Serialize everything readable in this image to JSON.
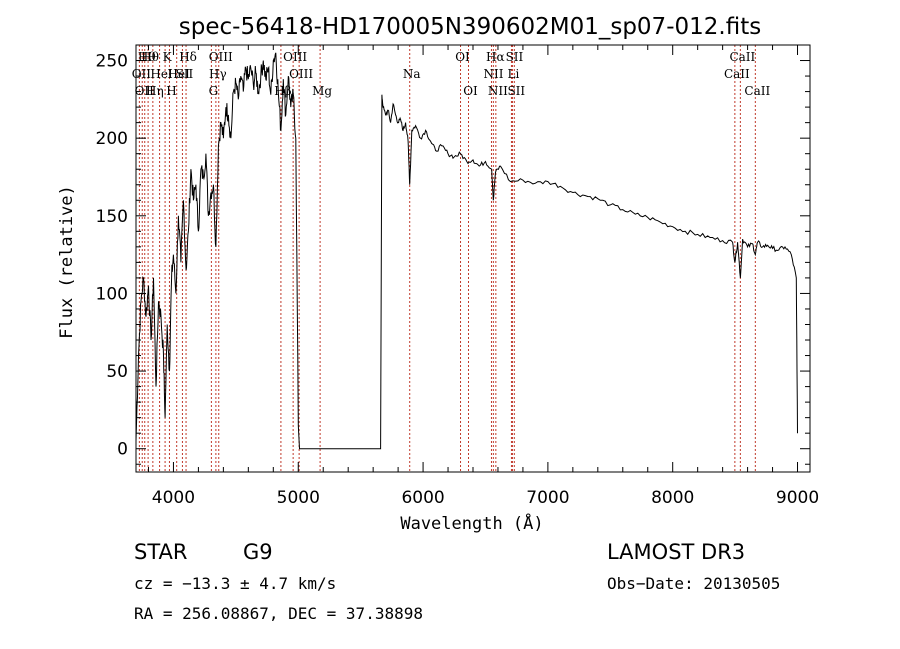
{
  "chart_data": {
    "type": "line",
    "title": "spec-56418-HD170005N390602M01_sp07-012.fits",
    "xlabel": "Wavelength (Å)",
    "ylabel": "Flux (relative)",
    "xlim": [
      3700,
      9100
    ],
    "ylim": [
      -15,
      260
    ],
    "xticks": [
      4000,
      5000,
      6000,
      7000,
      8000,
      9000
    ],
    "yticks": [
      0,
      50,
      100,
      150,
      200,
      250
    ],
    "series": [
      {
        "x": [
          3700,
          3720,
          3740,
          3760,
          3780,
          3800,
          3820,
          3840,
          3860,
          3880,
          3900,
          3920,
          3933,
          3950,
          3968,
          3985,
          4000,
          4020,
          4040,
          4060,
          4080,
          4101,
          4120,
          4140,
          4160,
          4180,
          4200,
          4220,
          4240,
          4260,
          4280,
          4300,
          4320,
          4340,
          4360,
          4380,
          4400,
          4420,
          4440,
          4460,
          4480,
          4500,
          4520,
          4540,
          4560,
          4580,
          4600,
          4620,
          4640,
          4660,
          4680,
          4700,
          4720,
          4740,
          4760,
          4780,
          4800,
          4820,
          4840,
          4861,
          4880,
          4900,
          4920,
          4940,
          4960,
          4980,
          5000,
          5010,
          5020,
          5030,
          5660,
          5670,
          5680,
          5700,
          5720,
          5740,
          5760,
          5780,
          5800,
          5820,
          5840,
          5860,
          5880,
          5893,
          5910,
          5940,
          5980,
          6020,
          6060,
          6100,
          6150,
          6200,
          6250,
          6300,
          6350,
          6400,
          6450,
          6500,
          6550,
          6563,
          6580,
          6620,
          6700,
          6800,
          6900,
          7000,
          7100,
          7200,
          7300,
          7400,
          7500,
          7600,
          7700,
          7800,
          7900,
          8000,
          8100,
          8200,
          8300,
          8400,
          8480,
          8498,
          8520,
          8542,
          8560,
          8600,
          8640,
          8662,
          8680,
          8720,
          8760,
          8800,
          8850,
          8900,
          8950,
          8990,
          9000
        ],
        "y": [
          5,
          60,
          95,
          110,
          85,
          105,
          70,
          110,
          40,
          95,
          85,
          60,
          20,
          80,
          50,
          110,
          125,
          100,
          150,
          120,
          160,
          115,
          140,
          180,
          160,
          170,
          140,
          180,
          175,
          190,
          150,
          165,
          170,
          130,
          195,
          210,
          200,
          220,
          215,
          200,
          230,
          235,
          225,
          240,
          230,
          245,
          238,
          245,
          235,
          242,
          230,
          240,
          250,
          238,
          245,
          228,
          250,
          255,
          230,
          205,
          238,
          215,
          240,
          220,
          228,
          200,
          15,
          0,
          0,
          0,
          0,
          228,
          220,
          215,
          218,
          210,
          222,
          215,
          210,
          212,
          205,
          210,
          198,
          170,
          205,
          208,
          200,
          205,
          198,
          192,
          195,
          190,
          188,
          190,
          185,
          186,
          182,
          185,
          180,
          160,
          178,
          182,
          172,
          173,
          171,
          172,
          169,
          165,
          163,
          161,
          157,
          154,
          151,
          149,
          146,
          143,
          140,
          138,
          136,
          134,
          133,
          120,
          133,
          110,
          135,
          130,
          132,
          125,
          133,
          130,
          131,
          129,
          128,
          130,
          125,
          110,
          10
        ]
      }
    ],
    "lines": [
      {
        "x": 3727,
        "label": "OII",
        "row": 2
      },
      {
        "x": 3750,
        "label": "OII",
        "row": 3
      },
      {
        "x": 3770,
        "label": "Hθ",
        "row": 1
      },
      {
        "x": 3797,
        "label": "Hθ",
        "row": 1
      },
      {
        "x": 3835,
        "label": "Hη",
        "row": 3
      },
      {
        "x": 3889,
        "label": "HeI",
        "row": 2
      },
      {
        "x": 3933,
        "label": "K",
        "row": 1
      },
      {
        "x": 3968,
        "label": "H",
        "row": 3
      },
      {
        "x": 4026,
        "label": "HeI",
        "row": 2
      },
      {
        "x": 4072,
        "label": "SII",
        "row": 2
      },
      {
        "x": 4101,
        "label": "Hδ",
        "row": 1
      },
      {
        "x": 4304,
        "label": "G",
        "row": 3
      },
      {
        "x": 4340,
        "label": "Hγ",
        "row": 2
      },
      {
        "x": 4363,
        "label": "OIII",
        "row": 1
      },
      {
        "x": 4861,
        "label": "Hβ",
        "row": 3
      },
      {
        "x": 4959,
        "label": "OIII",
        "row": 1
      },
      {
        "x": 5007,
        "label": "OIII",
        "row": 2
      },
      {
        "x": 5175,
        "label": "Mg",
        "row": 3
      },
      {
        "x": 5893,
        "label": "Na",
        "row": 2
      },
      {
        "x": 6300,
        "label": "OI",
        "row": 1
      },
      {
        "x": 6364,
        "label": "OI",
        "row": 3
      },
      {
        "x": 6548,
        "label": "NII",
        "row": 2
      },
      {
        "x": 6563,
        "label": "Hα",
        "row": 1
      },
      {
        "x": 6583,
        "label": "NII",
        "row": 3
      },
      {
        "x": 6708,
        "label": "Li",
        "row": 2
      },
      {
        "x": 6716,
        "label": "SII",
        "row": 1
      },
      {
        "x": 6731,
        "label": "SII",
        "row": 3
      },
      {
        "x": 8498,
        "label": "CaII",
        "row": 2
      },
      {
        "x": 8542,
        "label": "CaII",
        "row": 1
      },
      {
        "x": 8662,
        "label": "CaII",
        "row": 3
      }
    ]
  },
  "info": {
    "object_type": "STAR",
    "subclass": "G9",
    "survey": "LAMOST DR3",
    "cz": "cz = −13.3 ± 4.7 km/s",
    "obs_date": "Obs−Date: 20130505",
    "coords": "RA = 256.08867, DEC =  37.38898"
  }
}
